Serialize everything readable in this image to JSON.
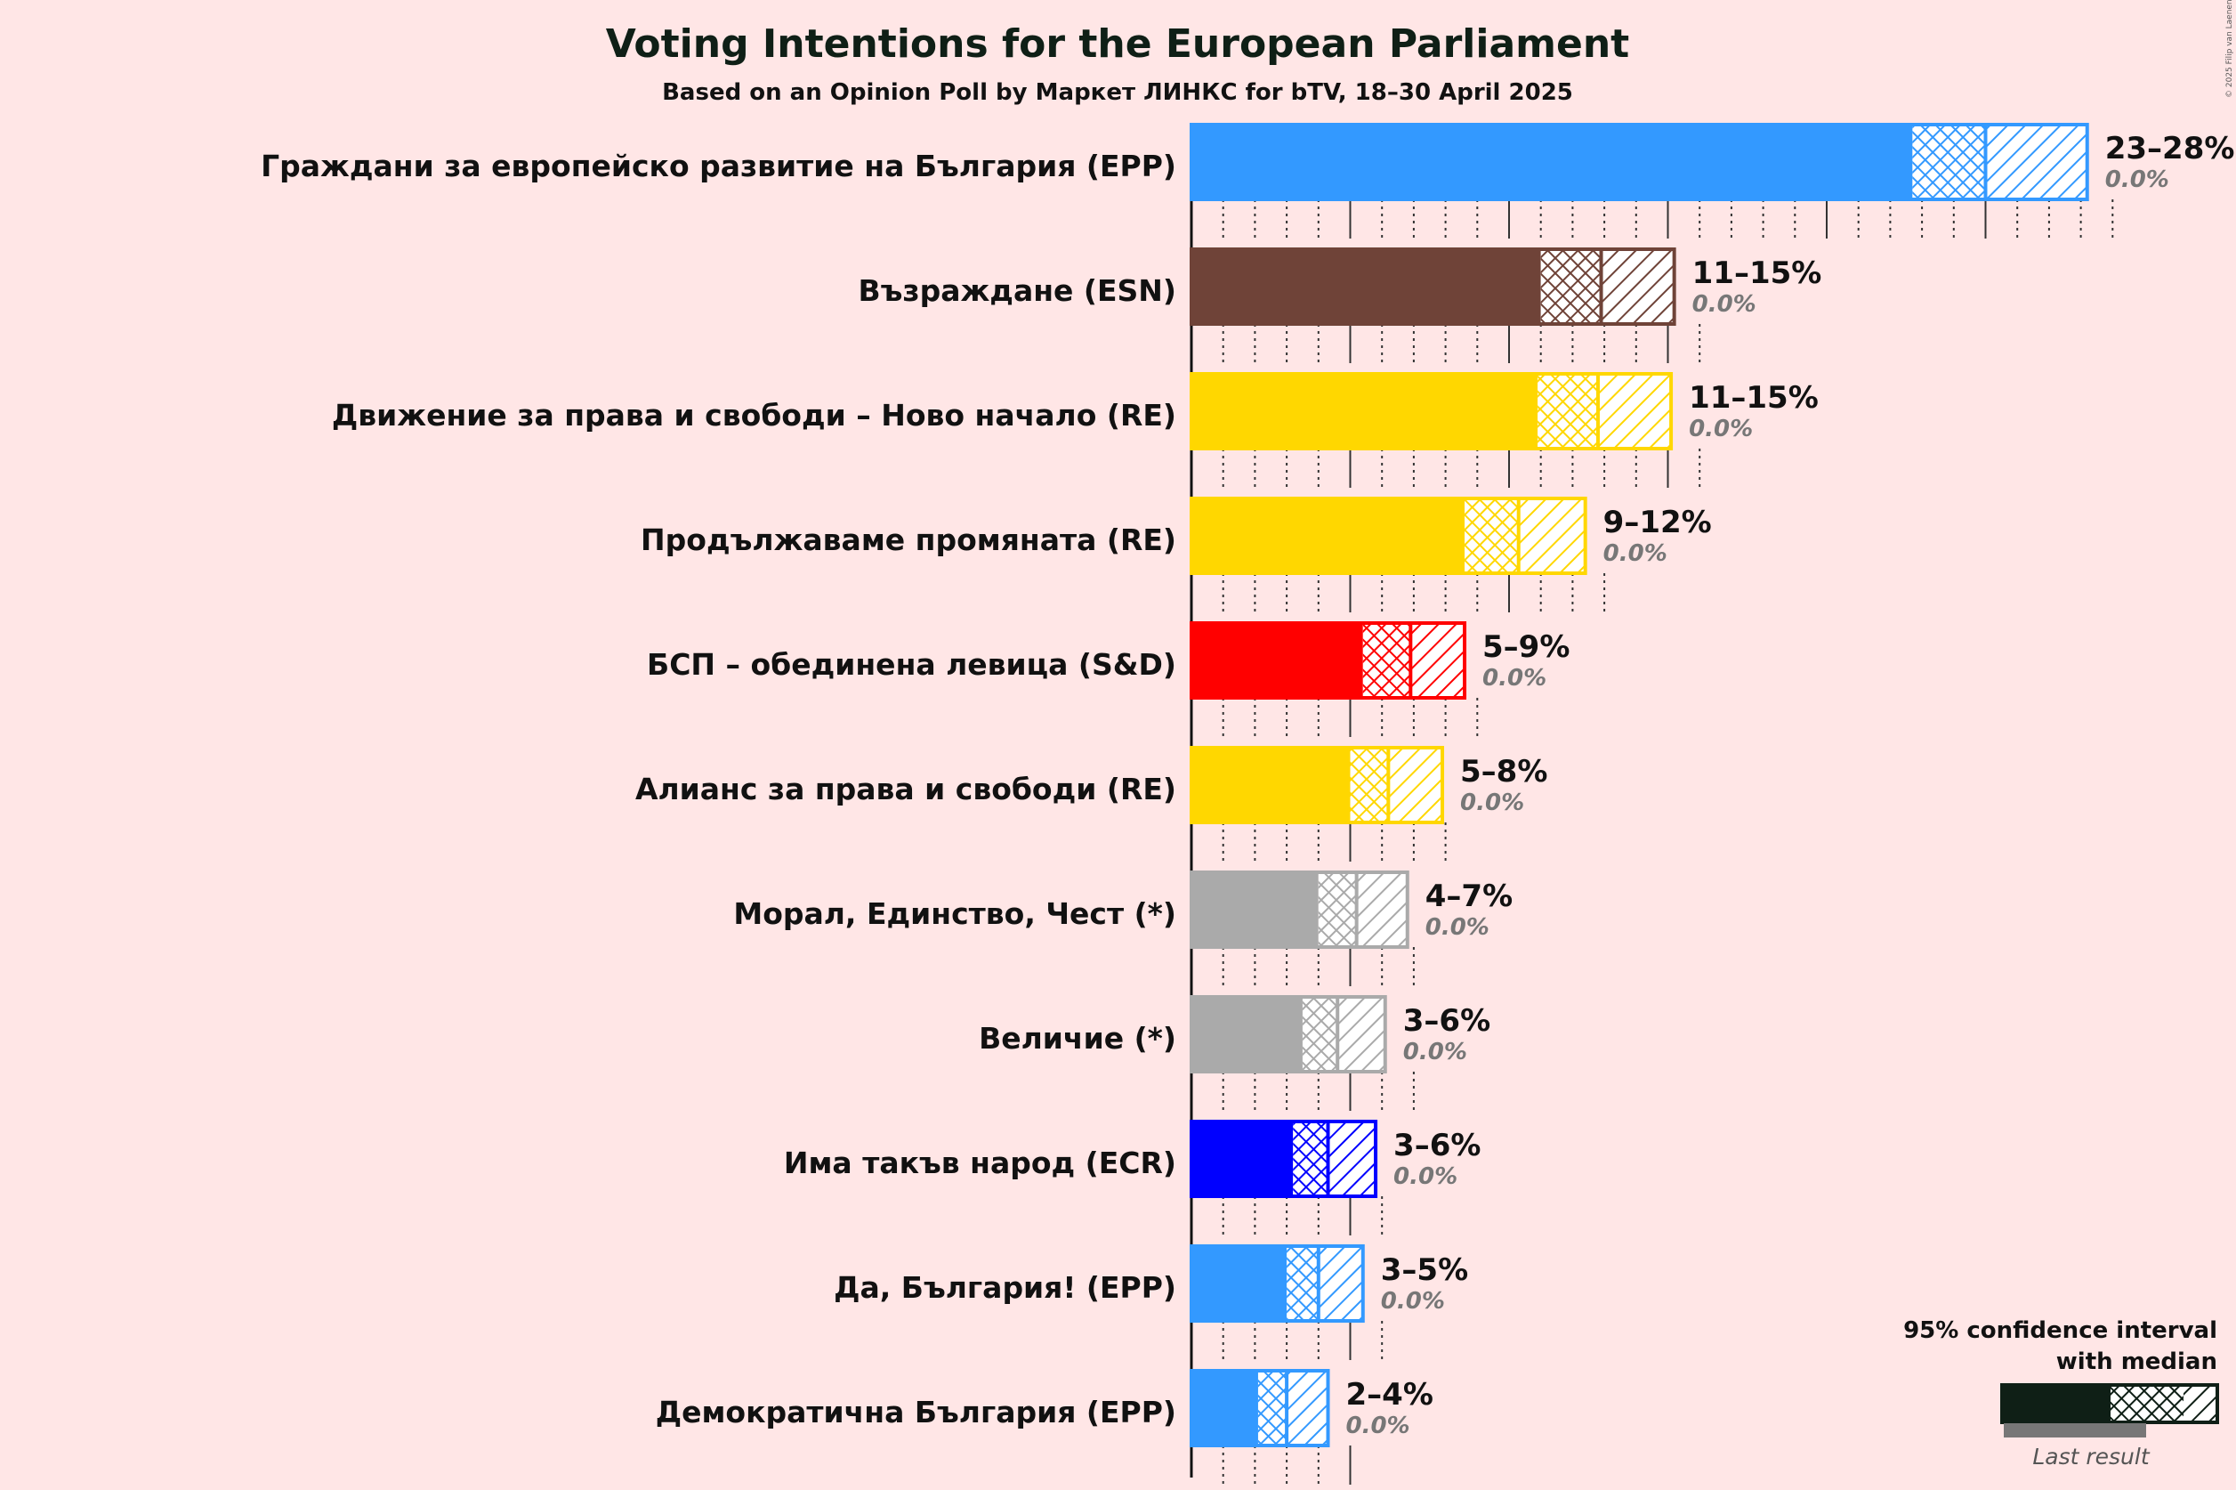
{
  "title": "Voting Intentions for the European Parliament",
  "subtitle": "Based on an Opinion Poll by Маркет ЛИНКС for bTV, 18–30 April 2025",
  "copyright": "© 2025 Filip van Laenen",
  "legend": {
    "line1": "95% confidence interval",
    "line2": "with median",
    "last_result": "Last result",
    "color": "#0f1f16"
  },
  "chart_data": {
    "type": "bar",
    "orientation": "horizontal",
    "x_unit": "%",
    "series": [
      {
        "party": "Граждани за европейско развитие на България (EPP)",
        "color": "#3399FF",
        "low": 22.7,
        "median": 25.0,
        "high": 28.2,
        "range_label": "23–28%",
        "last_label": "0.0%",
        "last_result": 0.0
      },
      {
        "party": "Възраждане (ESN)",
        "color": "#6F4338",
        "low": 11.0,
        "median": 12.9,
        "high": 15.2,
        "range_label": "11–15%",
        "last_label": "0.0%",
        "last_result": 0.0
      },
      {
        "party": "Движение за права и свободи – Ново начало (RE)",
        "color": "#FFD700",
        "low": 10.9,
        "median": 12.8,
        "high": 15.1,
        "range_label": "11–15%",
        "last_label": "0.0%",
        "last_result": 0.0
      },
      {
        "party": "Продължаваме промяната (RE)",
        "color": "#FFD700",
        "low": 8.6,
        "median": 10.3,
        "high": 12.4,
        "range_label": "9–12%",
        "last_label": "0.0%",
        "last_result": 0.0
      },
      {
        "party": "БСП – обединена левица (S&D)",
        "color": "#FF0000",
        "low": 5.4,
        "median": 6.9,
        "high": 8.6,
        "range_label": "5–9%",
        "last_label": "0.0%",
        "last_result": 0.0
      },
      {
        "party": "Алианс за права и свободи (RE)",
        "color": "#FFD700",
        "low": 5.0,
        "median": 6.2,
        "high": 7.9,
        "range_label": "5–8%",
        "last_label": "0.0%",
        "last_result": 0.0
      },
      {
        "party": "Морал, Единство, Чест (*)",
        "color": "#AAAAAA",
        "low": 4.0,
        "median": 5.2,
        "high": 6.8,
        "range_label": "4–7%",
        "last_label": "0.0%",
        "last_result": 0.0
      },
      {
        "party": "Величие (*)",
        "color": "#AAAAAA",
        "low": 3.5,
        "median": 4.6,
        "high": 6.1,
        "range_label": "3–6%",
        "last_label": "0.0%",
        "last_result": 0.0
      },
      {
        "party": "Има такъв народ (ECR)",
        "color": "#0000FF",
        "low": 3.2,
        "median": 4.3,
        "high": 5.8,
        "range_label": "3–6%",
        "last_label": "0.0%",
        "last_result": 0.0
      },
      {
        "party": "Да, България! (EPP)",
        "color": "#3399FF",
        "low": 3.0,
        "median": 4.0,
        "high": 5.4,
        "range_label": "3–5%",
        "last_label": "0.0%",
        "last_result": 0.0
      },
      {
        "party": "Демократична България (EPP)",
        "color": "#3399FF",
        "low": 2.1,
        "median": 3.0,
        "high": 4.3,
        "range_label": "2–4%",
        "last_label": "0.0%",
        "last_result": 0.0
      }
    ]
  }
}
